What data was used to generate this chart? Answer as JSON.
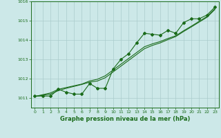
{
  "hours": [
    0,
    1,
    2,
    3,
    4,
    5,
    6,
    7,
    8,
    9,
    10,
    11,
    12,
    13,
    14,
    15,
    16,
    17,
    18,
    19,
    20,
    21,
    22,
    23
  ],
  "pressure_main": [
    1011.1,
    1011.1,
    1011.1,
    1011.45,
    1011.3,
    1011.2,
    1011.2,
    1011.75,
    1011.5,
    1011.5,
    1012.5,
    1013.0,
    1013.3,
    1013.85,
    1014.35,
    1014.3,
    1014.25,
    1014.5,
    1014.35,
    1014.9,
    1015.1,
    1015.1,
    1015.3,
    1015.7
  ],
  "pressure_line1": [
    1011.08,
    1011.17,
    1011.26,
    1011.45,
    1011.54,
    1011.63,
    1011.72,
    1011.88,
    1011.97,
    1012.15,
    1012.45,
    1012.75,
    1013.05,
    1013.35,
    1013.65,
    1013.8,
    1013.92,
    1014.08,
    1014.22,
    1014.48,
    1014.72,
    1014.97,
    1015.22,
    1015.62
  ],
  "pressure_line2": [
    1011.08,
    1011.14,
    1011.2,
    1011.38,
    1011.5,
    1011.6,
    1011.7,
    1011.82,
    1011.88,
    1012.05,
    1012.35,
    1012.65,
    1012.95,
    1013.25,
    1013.55,
    1013.72,
    1013.85,
    1014.02,
    1014.18,
    1014.44,
    1014.68,
    1014.93,
    1015.18,
    1015.58
  ],
  "ylim": [
    1010.5,
    1016.0
  ],
  "yticks": [
    1011,
    1012,
    1013,
    1014,
    1015
  ],
  "ytick_extra": 1016,
  "xlabel": "Graphe pression niveau de la mer (hPa)",
  "line_color": "#1a6b1a",
  "bg_color": "#cce8e8",
  "grid_color": "#aacccc",
  "marker": "D",
  "markersize": 2.0,
  "linewidth": 0.8
}
